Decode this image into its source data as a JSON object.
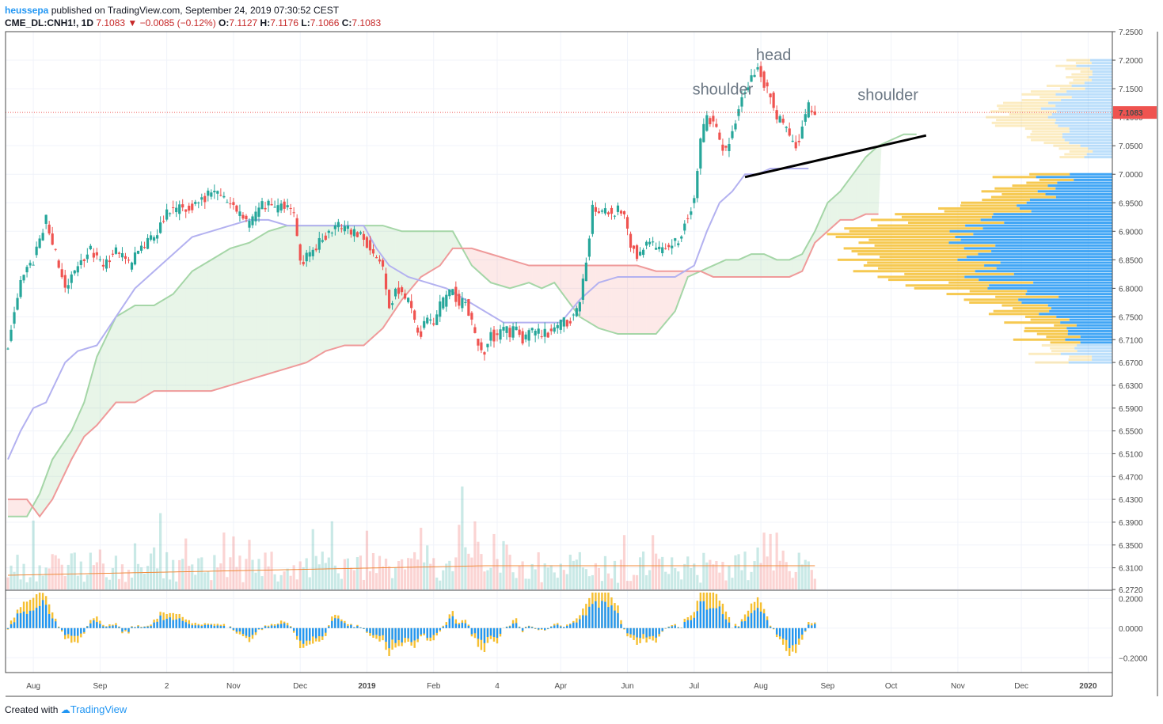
{
  "header": {
    "author": "heussepa",
    "published_text": " published on TradingView.com, September 24, 2019 07:30:52 CEST",
    "symbol_line_prefix": "CME_DL:CNH1!, 1D ",
    "last": "7.1083",
    "change": "−0.0085 (−0.12%)",
    "ohlc_o_label": "O:",
    "ohlc_o": "7.1127",
    "ohlc_h_label": "H:",
    "ohlc_h": "7.1176",
    "ohlc_l_label": "L:",
    "ohlc_l": "7.1066",
    "ohlc_c_label": "C:",
    "ohlc_c": "7.1083"
  },
  "footer": {
    "created_with": "Created with",
    "brand": "TradingView"
  },
  "colors": {
    "up": "#26a69a",
    "down": "#ef5350",
    "kumo_up": "#4caf50",
    "kumo_down": "#ef5350",
    "kijun": "#b3b1f0",
    "volume_profile_up": "#2196f3",
    "volume_profile_down": "#f5bf32",
    "volume_ma": "#f08a3a",
    "price_label_bg": "#ef5350",
    "neckline": "#000000"
  },
  "chart_data": {
    "type": "candlestick",
    "price_axis_labels": [
      "7.2500",
      "7.2000",
      "7.1500",
      "7.1000",
      "7.0500",
      "7.0000",
      "6.9500",
      "6.9000",
      "6.8500",
      "6.8000",
      "6.7500",
      "6.7100",
      "6.6700",
      "6.6300",
      "6.5900",
      "6.5500",
      "6.5100",
      "6.4700",
      "6.4300",
      "6.3900",
      "6.3500",
      "6.3100",
      "6.2720"
    ],
    "price_axis_ticks": [
      7.25,
      7.2,
      7.15,
      7.1,
      7.05,
      7.0,
      6.95,
      6.9,
      6.85,
      6.8,
      6.75,
      6.71,
      6.67,
      6.63,
      6.59,
      6.55,
      6.51,
      6.47,
      6.43,
      6.39,
      6.35,
      6.31,
      6.272
    ],
    "ylim": [
      6.272,
      7.25
    ],
    "last_price_label": "7.1083",
    "last_price": 7.1083,
    "time_axis_labels": [
      {
        "label": "Aug",
        "bar": 8,
        "bold": false
      },
      {
        "label": "Sep",
        "bar": 29,
        "bold": false
      },
      {
        "label": "2",
        "bar": 50,
        "bold": false
      },
      {
        "label": "Nov",
        "bar": 71,
        "bold": false
      },
      {
        "label": "Dec",
        "bar": 92,
        "bold": false
      },
      {
        "label": "2019",
        "bar": 113,
        "bold": true
      },
      {
        "label": "Feb",
        "bar": 134,
        "bold": false
      },
      {
        "label": "4",
        "bar": 154,
        "bold": false
      },
      {
        "label": "Apr",
        "bar": 174,
        "bold": false
      },
      {
        "label": "Jun",
        "bar": 195,
        "bold": false
      },
      {
        "label": "Jul",
        "bar": 216,
        "bold": false
      },
      {
        "label": "Aug",
        "bar": 237,
        "bold": false
      },
      {
        "label": "Sep",
        "bar": 258,
        "bold": false
      },
      {
        "label": "Oct",
        "bar": 278,
        "bold": false
      },
      {
        "label": "Nov",
        "bar": 299,
        "bold": false
      },
      {
        "label": "Dec",
        "bar": 319,
        "bold": false
      },
      {
        "label": "2020",
        "bar": 340,
        "bold": true
      }
    ],
    "price_path": [
      [
        0,
        6.7
      ],
      [
        4,
        6.81
      ],
      [
        8,
        6.85
      ],
      [
        12,
        6.92
      ],
      [
        15,
        6.86
      ],
      [
        18,
        6.8
      ],
      [
        22,
        6.84
      ],
      [
        26,
        6.87
      ],
      [
        30,
        6.84
      ],
      [
        34,
        6.87
      ],
      [
        38,
        6.84
      ],
      [
        42,
        6.87
      ],
      [
        46,
        6.89
      ],
      [
        50,
        6.93
      ],
      [
        54,
        6.94
      ],
      [
        58,
        6.94
      ],
      [
        62,
        6.96
      ],
      [
        66,
        6.97
      ],
      [
        70,
        6.95
      ],
      [
        74,
        6.92
      ],
      [
        76,
        6.91
      ],
      [
        80,
        6.95
      ],
      [
        84,
        6.94
      ],
      [
        88,
        6.95
      ],
      [
        90,
        6.93
      ],
      [
        92,
        6.84
      ],
      [
        96,
        6.87
      ],
      [
        100,
        6.89
      ],
      [
        104,
        6.91
      ],
      [
        108,
        6.9
      ],
      [
        112,
        6.89
      ],
      [
        114,
        6.87
      ],
      [
        118,
        6.84
      ],
      [
        120,
        6.76
      ],
      [
        122,
        6.8
      ],
      [
        126,
        6.78
      ],
      [
        128,
        6.74
      ],
      [
        130,
        6.72
      ],
      [
        132,
        6.75
      ],
      [
        134,
        6.73
      ],
      [
        136,
        6.77
      ],
      [
        138,
        6.78
      ],
      [
        140,
        6.8
      ],
      [
        142,
        6.77
      ],
      [
        144,
        6.78
      ],
      [
        146,
        6.74
      ],
      [
        148,
        6.7
      ],
      [
        150,
        6.69
      ],
      [
        152,
        6.72
      ],
      [
        154,
        6.71
      ],
      [
        156,
        6.73
      ],
      [
        158,
        6.72
      ],
      [
        160,
        6.73
      ],
      [
        162,
        6.71
      ],
      [
        164,
        6.72
      ],
      [
        166,
        6.73
      ],
      [
        168,
        6.72
      ],
      [
        170,
        6.72
      ],
      [
        172,
        6.73
      ],
      [
        174,
        6.74
      ],
      [
        176,
        6.74
      ],
      [
        178,
        6.75
      ],
      [
        180,
        6.78
      ],
      [
        182,
        6.84
      ],
      [
        184,
        6.94
      ],
      [
        186,
        6.93
      ],
      [
        188,
        6.94
      ],
      [
        190,
        6.93
      ],
      [
        192,
        6.94
      ],
      [
        194,
        6.93
      ],
      [
        196,
        6.88
      ],
      [
        198,
        6.86
      ],
      [
        200,
        6.87
      ],
      [
        202,
        6.88
      ],
      [
        204,
        6.87
      ],
      [
        206,
        6.87
      ],
      [
        208,
        6.87
      ],
      [
        210,
        6.88
      ],
      [
        212,
        6.89
      ],
      [
        214,
        6.93
      ],
      [
        216,
        6.95
      ],
      [
        218,
        7.06
      ],
      [
        220,
        7.1
      ],
      [
        222,
        7.09
      ],
      [
        224,
        7.06
      ],
      [
        226,
        7.04
      ],
      [
        228,
        7.07
      ],
      [
        230,
        7.12
      ],
      [
        232,
        7.15
      ],
      [
        234,
        7.17
      ],
      [
        236,
        7.19
      ],
      [
        238,
        7.16
      ],
      [
        240,
        7.14
      ],
      [
        242,
        7.1
      ],
      [
        244,
        7.09
      ],
      [
        246,
        7.06
      ],
      [
        248,
        7.05
      ],
      [
        250,
        7.08
      ],
      [
        252,
        7.12
      ],
      [
        254,
        7.11
      ]
    ],
    "candle_range": [
      0,
      254
    ],
    "tenkan_sen": [
      [
        0,
        6.5
      ],
      [
        4,
        6.55
      ],
      [
        8,
        6.59
      ],
      [
        12,
        6.6
      ],
      [
        18,
        6.67
      ],
      [
        22,
        6.69
      ],
      [
        28,
        6.7
      ],
      [
        34,
        6.75
      ],
      [
        40,
        6.8
      ],
      [
        46,
        6.83
      ],
      [
        52,
        6.86
      ],
      [
        58,
        6.89
      ],
      [
        64,
        6.9
      ],
      [
        70,
        6.91
      ],
      [
        76,
        6.92
      ],
      [
        82,
        6.92
      ],
      [
        88,
        6.91
      ],
      [
        94,
        6.91
      ],
      [
        100,
        6.91
      ],
      [
        106,
        6.91
      ],
      [
        112,
        6.91
      ],
      [
        116,
        6.87
      ],
      [
        120,
        6.84
      ],
      [
        126,
        6.82
      ],
      [
        132,
        6.81
      ],
      [
        138,
        6.8
      ],
      [
        144,
        6.78
      ],
      [
        150,
        6.76
      ],
      [
        156,
        6.74
      ],
      [
        162,
        6.74
      ],
      [
        168,
        6.74
      ],
      [
        174,
        6.74
      ],
      [
        180,
        6.78
      ],
      [
        186,
        6.81
      ],
      [
        192,
        6.82
      ],
      [
        198,
        6.82
      ],
      [
        204,
        6.82
      ],
      [
        210,
        6.82
      ],
      [
        216,
        6.84
      ],
      [
        220,
        6.9
      ],
      [
        224,
        6.95
      ],
      [
        228,
        6.97
      ],
      [
        232,
        7.0
      ],
      [
        236,
        7.0
      ],
      [
        240,
        7.01
      ],
      [
        244,
        7.01
      ],
      [
        248,
        7.01
      ],
      [
        252,
        7.01
      ]
    ],
    "senkou_span_a": [
      [
        0,
        6.4
      ],
      [
        6,
        6.4
      ],
      [
        10,
        6.44
      ],
      [
        14,
        6.5
      ],
      [
        20,
        6.55
      ],
      [
        24,
        6.6
      ],
      [
        28,
        6.68
      ],
      [
        34,
        6.75
      ],
      [
        40,
        6.77
      ],
      [
        46,
        6.77
      ],
      [
        52,
        6.79
      ],
      [
        58,
        6.83
      ],
      [
        64,
        6.85
      ],
      [
        70,
        6.87
      ],
      [
        76,
        6.88
      ],
      [
        82,
        6.9
      ],
      [
        88,
        6.91
      ],
      [
        94,
        6.91
      ],
      [
        100,
        6.91
      ],
      [
        106,
        6.91
      ],
      [
        112,
        6.91
      ],
      [
        118,
        6.91
      ],
      [
        124,
        6.9
      ],
      [
        130,
        6.9
      ],
      [
        136,
        6.9
      ],
      [
        140,
        6.9
      ],
      [
        146,
        6.84
      ],
      [
        152,
        6.81
      ],
      [
        158,
        6.8
      ],
      [
        164,
        6.81
      ],
      [
        168,
        6.8
      ],
      [
        172,
        6.81
      ],
      [
        176,
        6.78
      ],
      [
        180,
        6.75
      ],
      [
        186,
        6.73
      ],
      [
        192,
        6.72
      ],
      [
        198,
        6.72
      ],
      [
        204,
        6.72
      ],
      [
        210,
        6.76
      ],
      [
        214,
        6.82
      ],
      [
        218,
        6.83
      ],
      [
        222,
        6.84
      ],
      [
        226,
        6.85
      ],
      [
        230,
        6.85
      ],
      [
        234,
        6.86
      ],
      [
        238,
        6.86
      ],
      [
        242,
        6.85
      ],
      [
        246,
        6.85
      ],
      [
        250,
        6.86
      ],
      [
        254,
        6.9
      ],
      [
        258,
        6.95
      ],
      [
        262,
        6.97
      ],
      [
        266,
        7.0
      ],
      [
        270,
        7.03
      ],
      [
        274,
        7.05
      ],
      [
        278,
        7.06
      ],
      [
        282,
        7.07
      ],
      [
        286,
        7.07
      ]
    ],
    "senkou_span_b": [
      [
        0,
        6.43
      ],
      [
        6,
        6.43
      ],
      [
        10,
        6.4
      ],
      [
        14,
        6.43
      ],
      [
        20,
        6.5
      ],
      [
        24,
        6.54
      ],
      [
        28,
        6.56
      ],
      [
        34,
        6.6
      ],
      [
        40,
        6.6
      ],
      [
        46,
        6.62
      ],
      [
        52,
        6.62
      ],
      [
        58,
        6.62
      ],
      [
        64,
        6.62
      ],
      [
        70,
        6.63
      ],
      [
        76,
        6.64
      ],
      [
        82,
        6.65
      ],
      [
        88,
        6.66
      ],
      [
        94,
        6.67
      ],
      [
        100,
        6.69
      ],
      [
        106,
        6.7
      ],
      [
        112,
        6.7
      ],
      [
        118,
        6.73
      ],
      [
        124,
        6.78
      ],
      [
        130,
        6.82
      ],
      [
        136,
        6.84
      ],
      [
        140,
        6.87
      ],
      [
        146,
        6.87
      ],
      [
        152,
        6.86
      ],
      [
        158,
        6.85
      ],
      [
        164,
        6.84
      ],
      [
        168,
        6.84
      ],
      [
        172,
        6.84
      ],
      [
        176,
        6.84
      ],
      [
        180,
        6.84
      ],
      [
        186,
        6.84
      ],
      [
        192,
        6.84
      ],
      [
        198,
        6.84
      ],
      [
        204,
        6.83
      ],
      [
        210,
        6.83
      ],
      [
        214,
        6.83
      ],
      [
        218,
        6.83
      ],
      [
        222,
        6.82
      ],
      [
        226,
        6.82
      ],
      [
        230,
        6.82
      ],
      [
        234,
        6.82
      ],
      [
        238,
        6.82
      ],
      [
        242,
        6.82
      ],
      [
        246,
        6.82
      ],
      [
        250,
        6.83
      ],
      [
        254,
        6.88
      ],
      [
        258,
        6.9
      ],
      [
        262,
        6.92
      ],
      [
        266,
        6.92
      ],
      [
        270,
        6.93
      ],
      [
        274,
        6.93
      ]
    ],
    "annotations": [
      {
        "text": "head",
        "bar": 241,
        "price": 7.2
      },
      {
        "text": "shoulder",
        "bar": 225,
        "price": 7.14
      },
      {
        "text": "shoulder",
        "bar": 277,
        "price": 7.13
      }
    ],
    "neckline": [
      [
        232,
        6.995
      ],
      [
        289,
        7.068
      ]
    ],
    "volume_panel": {
      "range": [
        0,
        254
      ],
      "ma_label": "",
      "scale_max": 1
    },
    "oscillator_panel": {
      "axis_labels": [
        "0.2000",
        "0.0000",
        "−0.2000"
      ],
      "axis_ticks": [
        0.2,
        0.0,
        -0.2
      ],
      "ylim": [
        -0.3,
        0.25
      ],
      "range": [
        0,
        254
      ]
    },
    "volume_profile": {
      "price_step": 0.005,
      "ranges": [
        [
          6.67,
          7.0
        ],
        [
          7.03,
          7.2
        ]
      ]
    }
  }
}
